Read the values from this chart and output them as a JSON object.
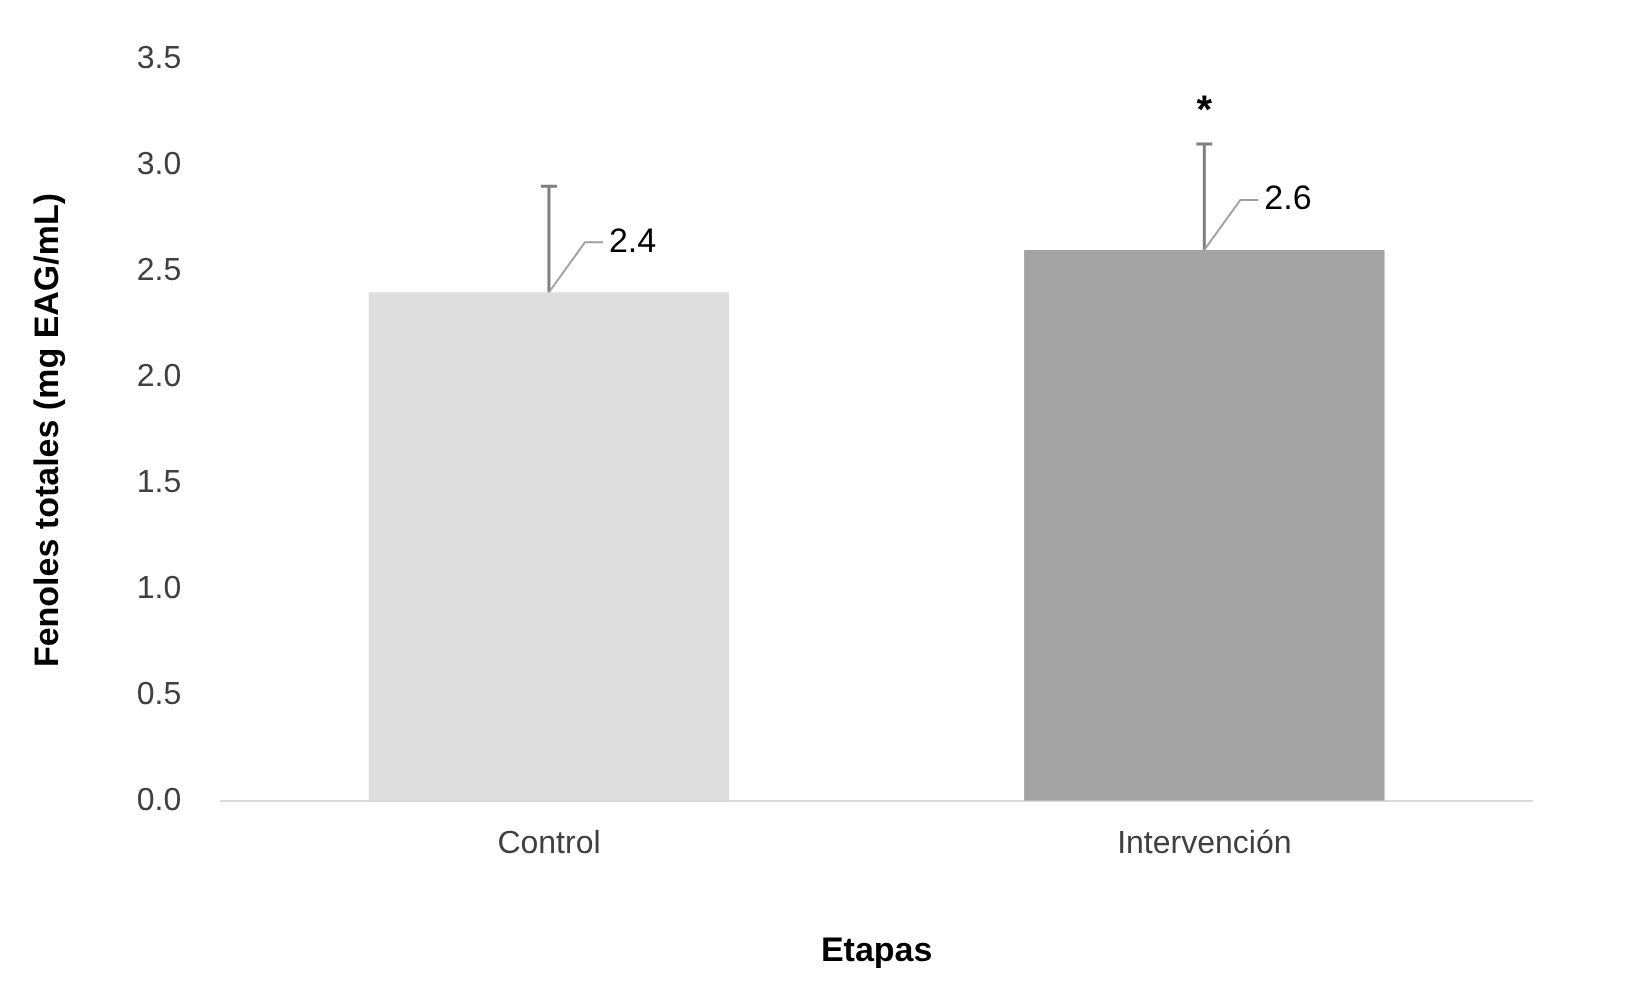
{
  "chart_data": {
    "type": "bar",
    "xlabel": "Etapas",
    "ylabel": "Fenoles totales (mg EAG/mL)",
    "categories": [
      "Control",
      "Intervención"
    ],
    "values": [
      2.4,
      2.6
    ],
    "colors": [
      "#dedede",
      "#a3a3a3"
    ],
    "errors": [
      [
        2.4,
        2.9
      ],
      [
        2.6,
        3.1
      ]
    ],
    "data_labels": true,
    "annotations": [
      "*"
    ],
    "ylim": [
      0,
      3.5
    ],
    "yticks": [
      {
        "value": 0,
        "label": "0.0"
      },
      0.5,
      {
        "value": 1,
        "label": "1.0"
      },
      1.5,
      {
        "value": 2,
        "label": "2.0"
      },
      2.5,
      {
        "value": 3,
        "label": "3.0"
      },
      3.5
    ],
    "grid": false,
    "legend": false
  }
}
